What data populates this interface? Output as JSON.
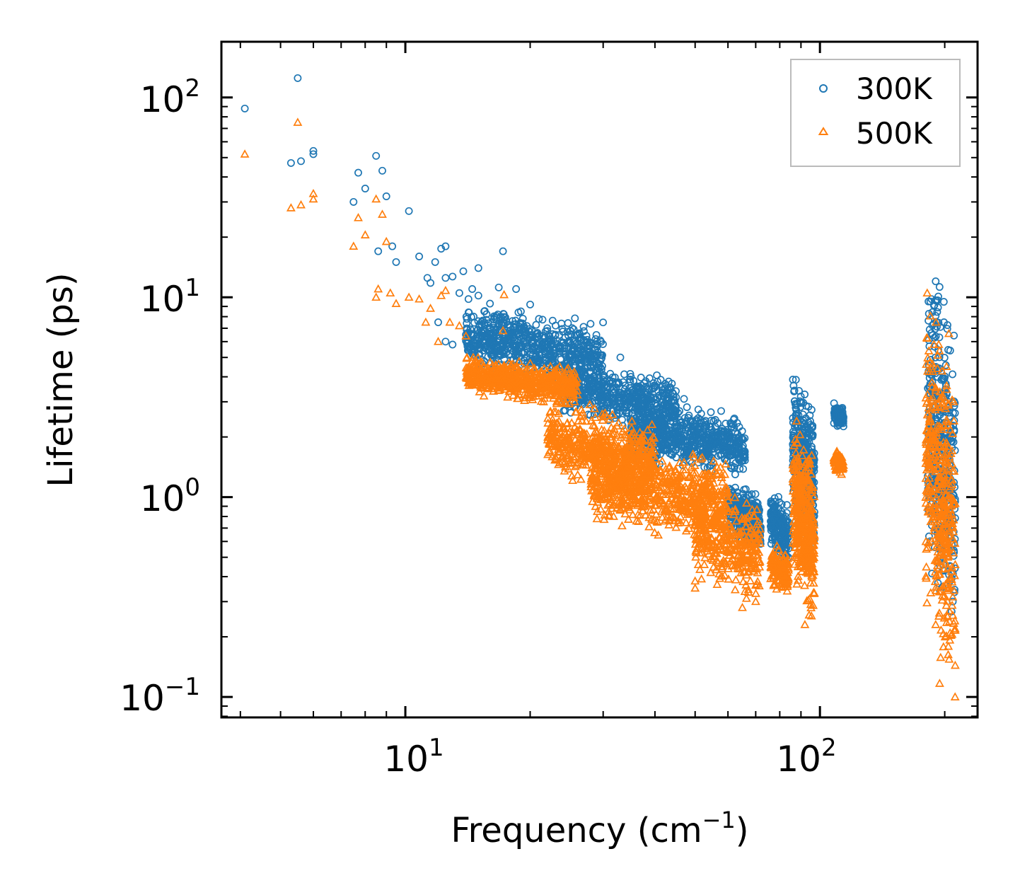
{
  "chart_data": {
    "type": "scatter",
    "title": "",
    "xlabel": "Frequency",
    "xlabel_unit": "cm",
    "xlabel_unit_exp": "−1",
    "ylabel": "Lifetime (ps)",
    "xscale": "log",
    "yscale": "log",
    "xlim": [
      3.6,
      240
    ],
    "ylim": [
      0.079,
      190
    ],
    "xticks": [
      {
        "base": "10",
        "exp": "1",
        "value": 10
      },
      {
        "base": "10",
        "exp": "2",
        "value": 100
      }
    ],
    "yticks": [
      {
        "base": "10",
        "exp": "−1",
        "value": 0.1
      },
      {
        "base": "10",
        "exp": "0",
        "value": 1
      },
      {
        "base": "10",
        "exp": "1",
        "value": 10
      },
      {
        "base": "10",
        "exp": "2",
        "value": 100
      }
    ],
    "legend_position": "top-right",
    "series": [
      {
        "name": "300K",
        "color": "#1f77b4",
        "marker": "circle",
        "points": [
          [
            4.1,
            88
          ],
          [
            5.5,
            125
          ],
          [
            5.3,
            47
          ],
          [
            5.6,
            48
          ],
          [
            6.0,
            52
          ],
          [
            6.0,
            54
          ],
          [
            7.5,
            30
          ],
          [
            7.7,
            42
          ],
          [
            8.0,
            35
          ],
          [
            8.5,
            51
          ],
          [
            8.6,
            17
          ],
          [
            8.8,
            43
          ],
          [
            9.0,
            32
          ],
          [
            9.3,
            18
          ],
          [
            9.5,
            15
          ],
          [
            10.2,
            27
          ],
          [
            10.8,
            16
          ],
          [
            11.3,
            12.5
          ],
          [
            11.5,
            11.8
          ],
          [
            11.8,
            15
          ],
          [
            12.2,
            17.5
          ],
          [
            12.5,
            18
          ],
          [
            12.5,
            12.5
          ],
          [
            13.0,
            12.7
          ],
          [
            13.5,
            10.5
          ],
          [
            13.8,
            13.5
          ],
          [
            14.2,
            9.8
          ],
          [
            14.5,
            11
          ],
          [
            15.0,
            14
          ],
          [
            15.0,
            10.2
          ],
          [
            16.0,
            9.3
          ],
          [
            16.8,
            11.2
          ],
          [
            17.2,
            17
          ],
          [
            18.5,
            11
          ],
          [
            20.0,
            9.2
          ],
          [
            22.0,
            7
          ],
          [
            12.0,
            7.5
          ],
          [
            12.5,
            6.0
          ],
          [
            13.0,
            5.8
          ],
          [
            14.0,
            6.5
          ],
          [
            15.5,
            8.5
          ],
          [
            17.0,
            8
          ],
          [
            19.0,
            8.5
          ],
          [
            21.0,
            7.8
          ],
          [
            23.0,
            6.5
          ],
          [
            25.0,
            6.8
          ],
          [
            27.0,
            5.2
          ],
          [
            29.0,
            5.1
          ],
          [
            33.0,
            5.0
          ],
          [
            35.0,
            4.0
          ],
          [
            38.0,
            3.8
          ],
          [
            41.0,
            2.8
          ],
          [
            47.0,
            3.1
          ]
        ],
        "clusters": [
          {
            "x": [
              14,
              30
            ],
            "y": [
              3.5,
              9.0
            ],
            "n": 650
          },
          {
            "x": [
              24,
              45
            ],
            "y": [
              2.2,
              4.6
            ],
            "n": 500
          },
          {
            "x": [
              35,
              66
            ],
            "y": [
              1.3,
              3.0
            ],
            "n": 650
          },
          {
            "x": [
              60,
              72
            ],
            "y": [
              0.55,
              1.15
            ],
            "n": 320
          },
          {
            "x": [
              76,
              84
            ],
            "y": [
              0.45,
              1.1
            ],
            "n": 180
          },
          {
            "x": [
              86,
              97
            ],
            "y": [
              0.55,
              4.0
            ],
            "n": 420
          },
          {
            "x": [
              108,
              114
            ],
            "y": [
              2.2,
              2.95
            ],
            "n": 110
          },
          {
            "x": [
              182,
              212
            ],
            "y": [
              0.23,
              15.0
            ],
            "n": 420
          }
        ]
      },
      {
        "name": "500K",
        "color": "#ff7f0e",
        "marker": "triangle",
        "points": [
          [
            4.1,
            52
          ],
          [
            5.5,
            75
          ],
          [
            5.3,
            28
          ],
          [
            5.6,
            29
          ],
          [
            6.0,
            31
          ],
          [
            6.0,
            33
          ],
          [
            7.5,
            18
          ],
          [
            7.7,
            25
          ],
          [
            8.0,
            20.5
          ],
          [
            8.5,
            31
          ],
          [
            8.6,
            11
          ],
          [
            8.8,
            26
          ],
          [
            9.0,
            19
          ],
          [
            9.2,
            10.5
          ],
          [
            9.5,
            9.3
          ],
          [
            8.5,
            10
          ],
          [
            10.2,
            10
          ],
          [
            10.8,
            9.8
          ],
          [
            11.2,
            7.5
          ],
          [
            11.5,
            8.8
          ],
          [
            12.0,
            6
          ],
          [
            12.2,
            10.2
          ],
          [
            12.5,
            10.8
          ],
          [
            12.8,
            7.5
          ],
          [
            13.5,
            7.2
          ],
          [
            14.0,
            6.4
          ],
          [
            14.5,
            4.8
          ],
          [
            15.2,
            4.3
          ],
          [
            16.5,
            4.5
          ],
          [
            17.2,
            6.8
          ],
          [
            17.3,
            10.3
          ],
          [
            18.0,
            4.6
          ],
          [
            19.0,
            4.2
          ],
          [
            50.0,
            0.35
          ],
          [
            50.0,
            0.38
          ],
          [
            65.0,
            0.28
          ],
          [
            70.0,
            0.3
          ],
          [
            92.0,
            0.23
          ]
        ],
        "clusters": [
          {
            "x": [
              14,
              26
            ],
            "y": [
              2.9,
              5.0
            ],
            "n": 600
          },
          {
            "x": [
              22,
              40
            ],
            "y": [
              1.0,
              3.0
            ],
            "n": 550
          },
          {
            "x": [
              28,
              60
            ],
            "y": [
              0.6,
              1.9
            ],
            "n": 750
          },
          {
            "x": [
              50,
              72
            ],
            "y": [
              0.3,
              1.2
            ],
            "n": 350
          },
          {
            "x": [
              76,
              84
            ],
            "y": [
              0.32,
              0.6
            ],
            "n": 140
          },
          {
            "x": [
              86,
              97
            ],
            "y": [
              0.24,
              2.4
            ],
            "n": 420
          },
          {
            "x": [
              108,
              114
            ],
            "y": [
              1.3,
              1.7
            ],
            "n": 90
          },
          {
            "x": [
              180,
              212
            ],
            "y": [
              0.1,
              10.5
            ],
            "n": 420
          }
        ]
      }
    ]
  }
}
